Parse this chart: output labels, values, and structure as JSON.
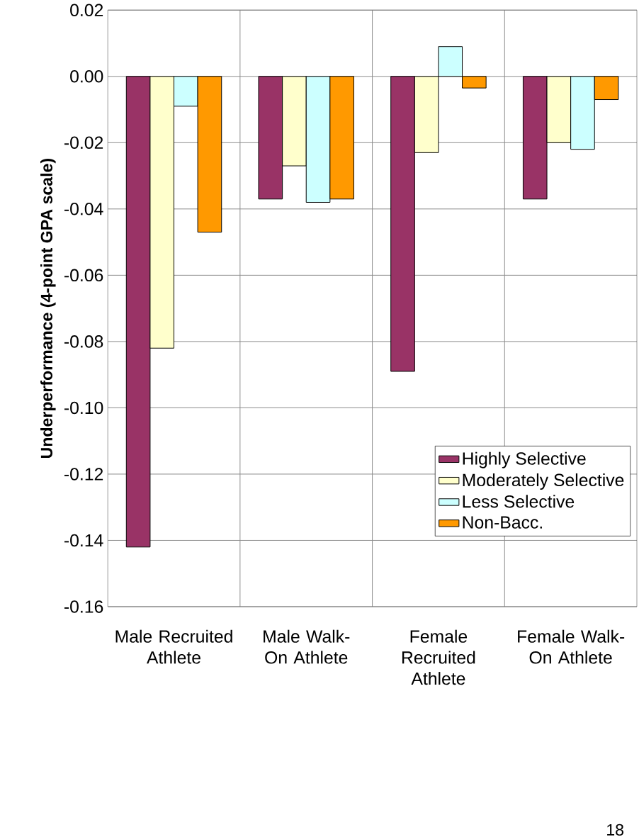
{
  "chart_data": {
    "type": "bar",
    "ylabel": "Underperformance (4-point GPA scale)",
    "categories": [
      "Male Recruited Athlete",
      "Male Walk-On Athlete",
      "Female Recruited Athlete",
      "Female Walk-On Athlete"
    ],
    "series": [
      {
        "name": "Highly Selective",
        "color": "#993366",
        "values": [
          -0.142,
          -0.037,
          -0.089,
          -0.037
        ]
      },
      {
        "name": "Moderately Selective",
        "color": "#ffffcc",
        "values": [
          -0.082,
          -0.027,
          -0.023,
          -0.02
        ]
      },
      {
        "name": "Less Selective",
        "color": "#ccffff",
        "values": [
          -0.009,
          -0.038,
          0.009,
          -0.022
        ]
      },
      {
        "name": "Non-Bacc.",
        "color": "#ff9900",
        "values": [
          -0.047,
          -0.037,
          -0.0035,
          -0.007
        ]
      }
    ],
    "ylim": [
      -0.16,
      0.02
    ],
    "yticks": [
      {
        "value": 0.02,
        "label": "0.02"
      },
      {
        "value": 0.0,
        "label": "0.00"
      },
      {
        "value": -0.02,
        "label": "-0.02"
      },
      {
        "value": -0.04,
        "label": "-0.04"
      },
      {
        "value": -0.06,
        "label": "-0.06"
      },
      {
        "value": -0.08,
        "label": "-0.08"
      },
      {
        "value": -0.1,
        "label": "-0.10"
      },
      {
        "value": -0.12,
        "label": "-0.12"
      },
      {
        "value": -0.14,
        "label": "-0.14"
      },
      {
        "value": -0.16,
        "label": "-0.16"
      }
    ],
    "grid": true,
    "legend": "bottom right",
    "annotations": [
      "18"
    ]
  }
}
